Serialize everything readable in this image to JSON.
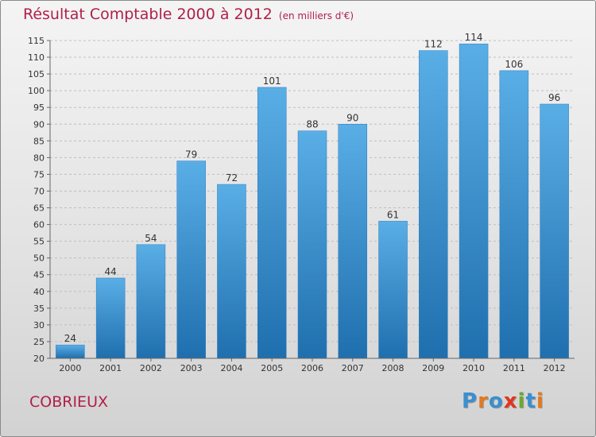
{
  "header": {
    "title": "Résultat Comptable 2000 à 2012",
    "subtitle": "(en milliers d'€)"
  },
  "footer": {
    "place": "COBRIEUX",
    "logo": "Proxiti"
  },
  "colors": {
    "title": "#b0204a",
    "bar_top": "#5aaee6",
    "bar_bottom": "#1f6fae",
    "grid": "#bfbfbf",
    "logo_letters": [
      "#3a8fd0",
      "#e27a1c",
      "#3a8fd0",
      "#e2361c",
      "#6aaa2a",
      "#3a8fd0",
      "#e27a1c"
    ]
  },
  "chart_data": {
    "type": "bar",
    "title": "Résultat Comptable 2000 à 2012",
    "subtitle": "(en milliers d'€)",
    "xlabel": "",
    "ylabel": "",
    "categories": [
      "2000",
      "2001",
      "2002",
      "2003",
      "2004",
      "2005",
      "2006",
      "2007",
      "2008",
      "2009",
      "2010",
      "2011",
      "2012"
    ],
    "values": [
      24,
      44,
      54,
      79,
      72,
      101,
      88,
      90,
      61,
      112,
      114,
      106,
      96
    ],
    "ylim": [
      20,
      115
    ],
    "yticks": [
      20,
      25,
      30,
      35,
      40,
      45,
      50,
      55,
      60,
      65,
      70,
      75,
      80,
      85,
      90,
      95,
      100,
      105,
      110,
      115
    ],
    "grid": true,
    "data_labels": true
  }
}
